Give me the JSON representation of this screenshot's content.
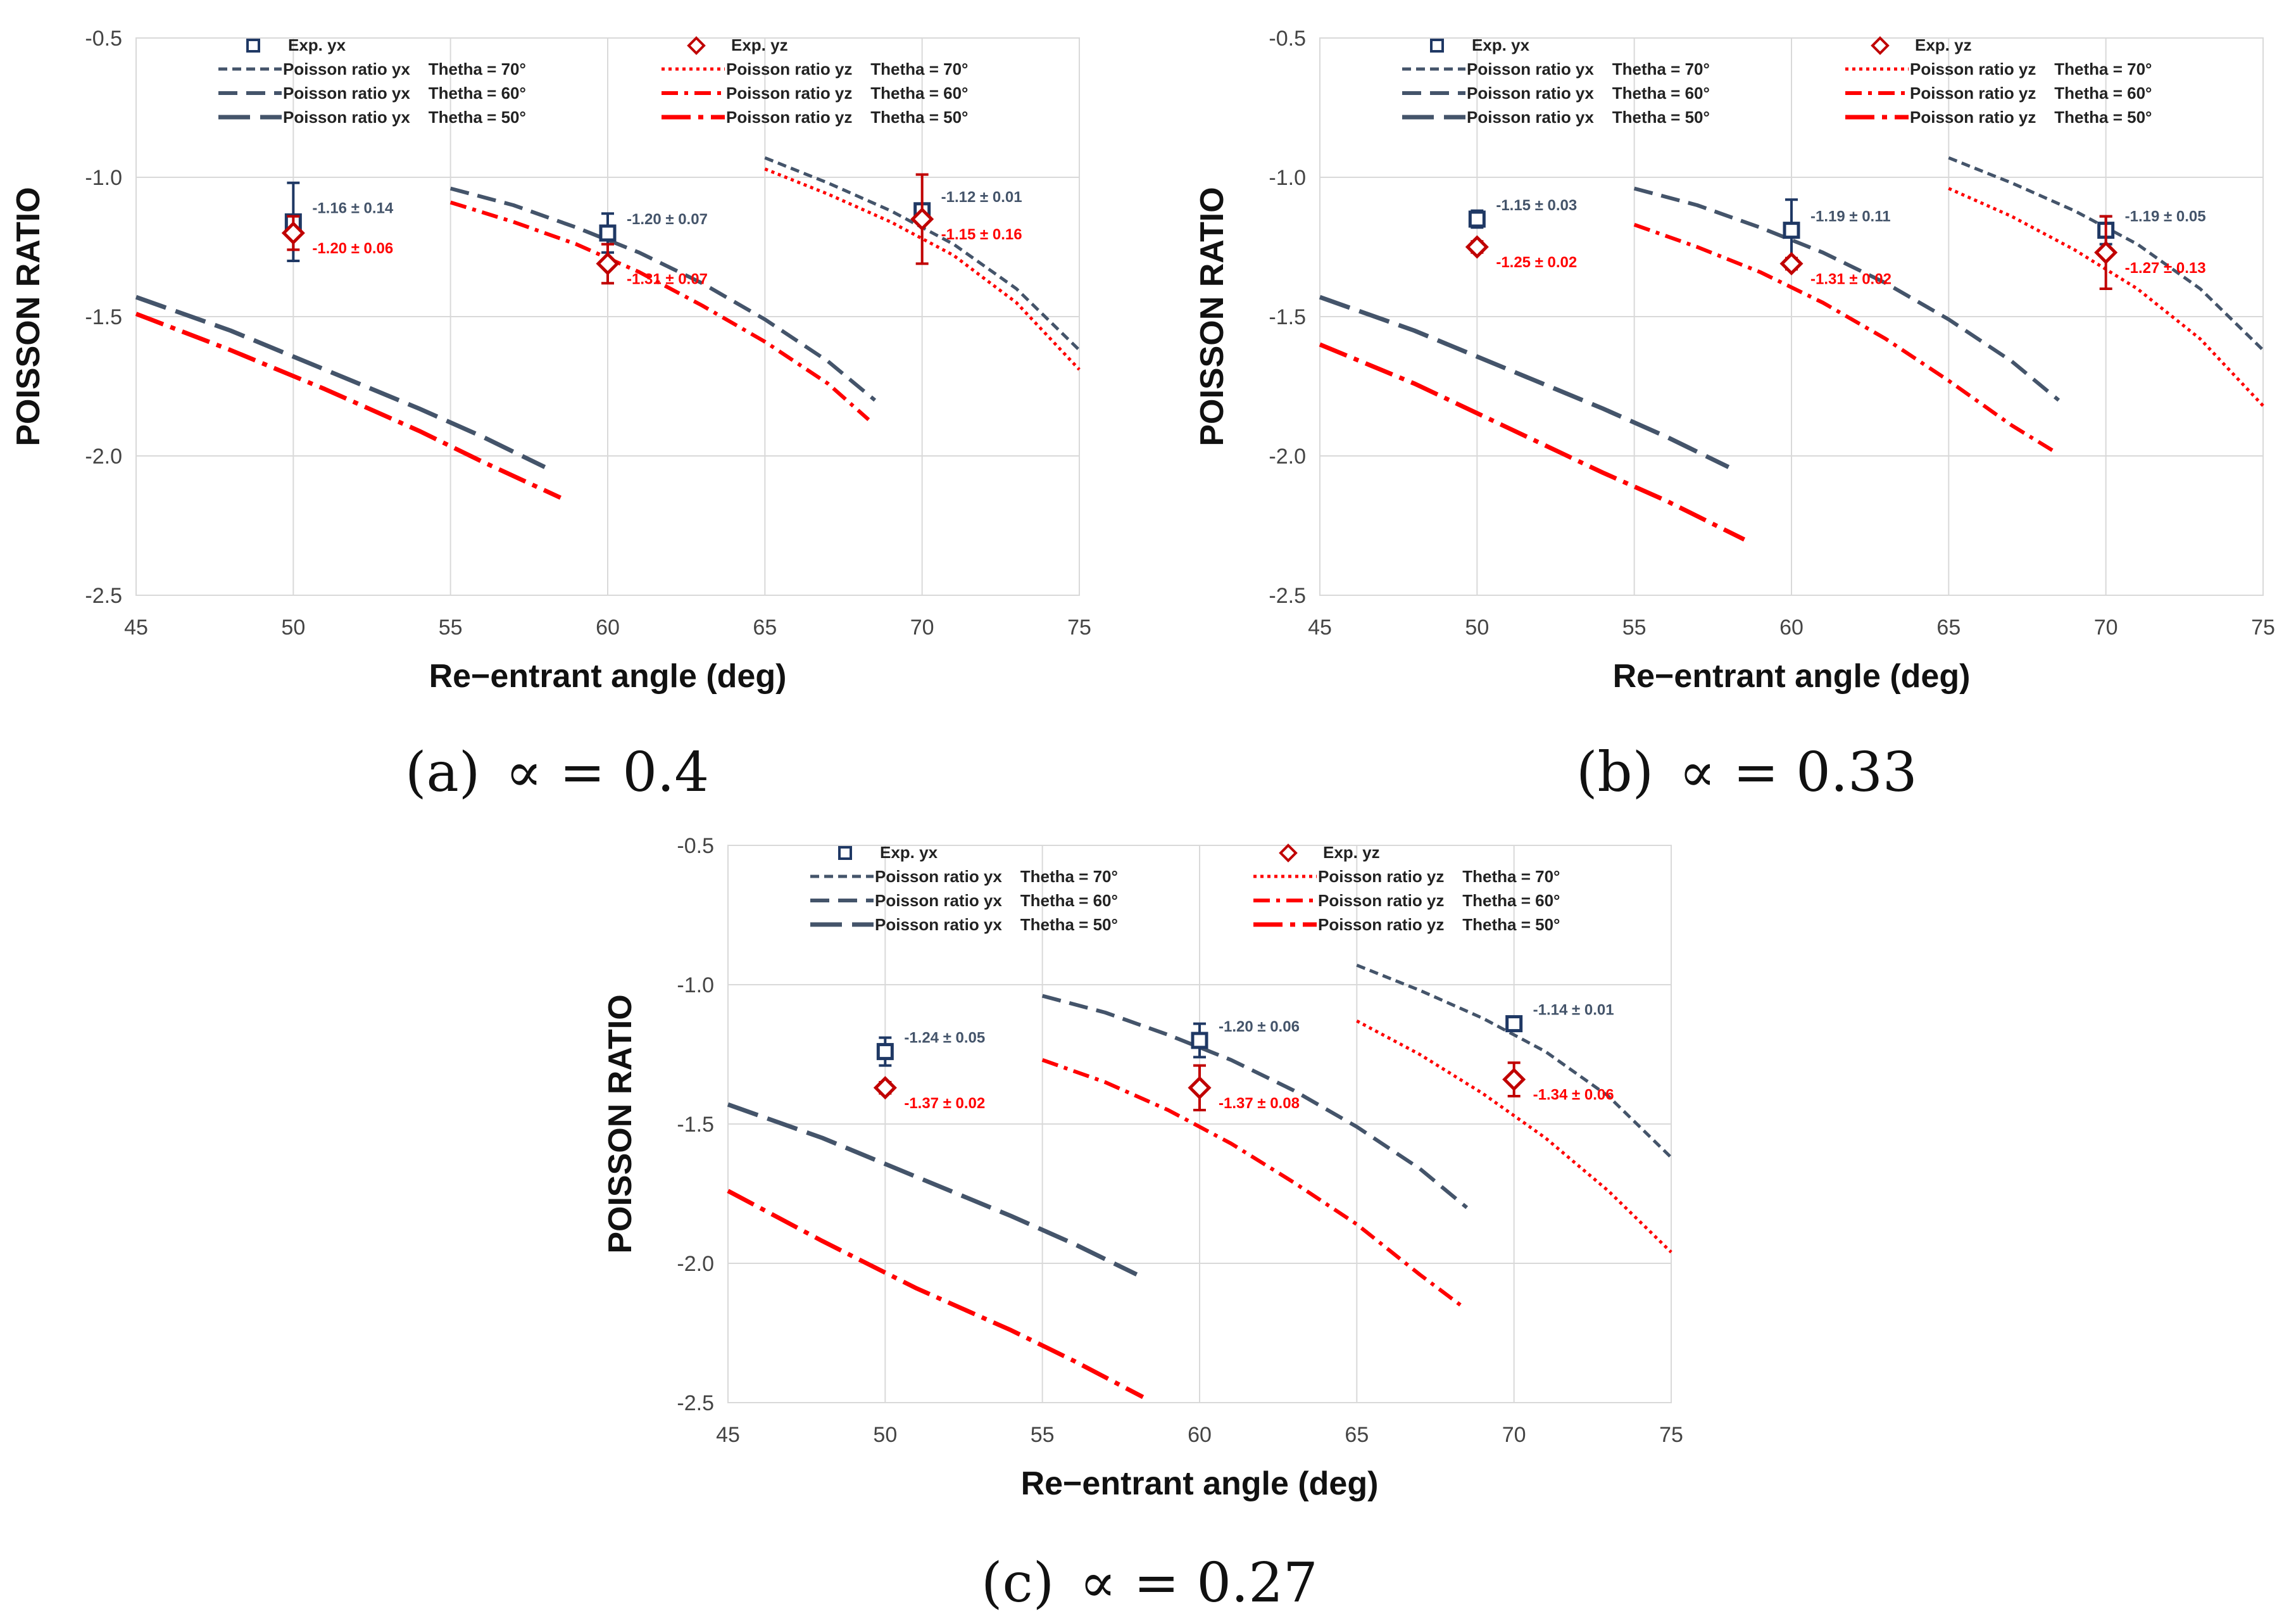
{
  "captions": [
    {
      "label": "(a)",
      "text": "∝ = 0.4"
    },
    {
      "label": "(b)",
      "text": "∝ = 0.33"
    },
    {
      "label": "(c)",
      "text": "∝ = 0.27"
    }
  ],
  "colors": {
    "yx": "#44546A",
    "yz": "#FF0000",
    "exp_yx": "#1F3864",
    "exp_yz": "#C00000",
    "grid": "#D9D9D9"
  },
  "chart_data": [
    {
      "type": "line",
      "id": "a",
      "title": "(a) ∝ = 0.4",
      "xlabel": "Re−entrant angle (deg)",
      "ylabel": "POISSON RATIO",
      "xlim": [
        45,
        75
      ],
      "ylim": [
        -2.5,
        -0.5
      ],
      "xticks": [
        "45",
        "50",
        "55",
        "60",
        "65",
        "70",
        "75"
      ],
      "yticks": [
        "-0.5",
        "-1.0",
        "-1.5",
        "-2.0",
        "-2.5"
      ],
      "grid": true,
      "legend": {
        "yx": [
          "Exp. yx",
          "Poisson ratio yx    Thetha = 70°",
          "Poisson ratio yx    Thetha = 60°",
          "Poisson ratio yx    Thetha = 50°"
        ],
        "yz": [
          "Exp. yz",
          "Poisson ratio yz    Thetha = 70°",
          "Poisson ratio yz    Thetha = 60°",
          "Poisson ratio yz    Thetha = 50°"
        ]
      },
      "series": [
        {
          "name": "Poisson ratio yx Thetha = 70°",
          "group": "yx",
          "style": "dash-short",
          "x": [
            65,
            67,
            69,
            71,
            73,
            75
          ],
          "y": [
            -0.93,
            -1.02,
            -1.12,
            -1.24,
            -1.4,
            -1.62
          ]
        },
        {
          "name": "Poisson ratio yx Thetha = 60°",
          "group": "yx",
          "style": "dash-med",
          "x": [
            55,
            57,
            59,
            61,
            63,
            65,
            67,
            68.5
          ],
          "y": [
            -1.04,
            -1.1,
            -1.18,
            -1.27,
            -1.38,
            -1.51,
            -1.66,
            -1.8
          ]
        },
        {
          "name": "Poisson ratio yx Thetha = 50°",
          "group": "yx",
          "style": "dash-long",
          "x": [
            45,
            48,
            51,
            54,
            56,
            58
          ],
          "y": [
            -1.43,
            -1.55,
            -1.69,
            -1.83,
            -1.93,
            -2.04
          ]
        },
        {
          "name": "Poisson ratio yz Thetha = 70°",
          "group": "yz",
          "style": "dot",
          "x": [
            65,
            67,
            69,
            71,
            73,
            75
          ],
          "y": [
            -0.97,
            -1.06,
            -1.16,
            -1.28,
            -1.45,
            -1.69
          ]
        },
        {
          "name": "Poisson ratio yz Thetha = 60°",
          "group": "yz",
          "style": "dash-dot",
          "x": [
            55,
            57,
            59,
            61,
            63,
            65,
            67,
            68.3
          ],
          "y": [
            -1.09,
            -1.16,
            -1.24,
            -1.34,
            -1.46,
            -1.59,
            -1.74,
            -1.87
          ]
        },
        {
          "name": "Poisson ratio yz Thetha = 50°",
          "group": "yz",
          "style": "long-dash-dot",
          "x": [
            45,
            48,
            51,
            54,
            56,
            58.5
          ],
          "y": [
            -1.49,
            -1.62,
            -1.76,
            -1.91,
            -2.02,
            -2.15
          ]
        }
      ],
      "exp_yx": [
        {
          "x": 50,
          "y": -1.16,
          "err": 0.14,
          "label": "-1.16 ± 0.14"
        },
        {
          "x": 60,
          "y": -1.2,
          "err": 0.07,
          "label": "-1.20 ± 0.07"
        },
        {
          "x": 70,
          "y": -1.12,
          "err": 0.01,
          "label": "-1.12 ± 0.01"
        }
      ],
      "exp_yz": [
        {
          "x": 50,
          "y": -1.2,
          "err": 0.06,
          "label": "-1.20 ± 0.06"
        },
        {
          "x": 60,
          "y": -1.31,
          "err": 0.07,
          "label": "-1.31 ± 0.07"
        },
        {
          "x": 70,
          "y": -1.15,
          "err": 0.16,
          "label": "-1.15 ± 0.16"
        }
      ]
    },
    {
      "type": "line",
      "id": "b",
      "title": "(b) ∝ = 0.33",
      "xlabel": "Re−entrant angle (deg)",
      "ylabel": "POISSON RATIO",
      "xlim": [
        45,
        75
      ],
      "ylim": [
        -2.5,
        -0.5
      ],
      "xticks": [
        "45",
        "50",
        "55",
        "60",
        "65",
        "70",
        "75"
      ],
      "yticks": [
        "-0.5",
        "-1.0",
        "-1.5",
        "-2.0",
        "-2.5"
      ],
      "grid": true,
      "legend": {
        "yx": [
          "Exp. yx",
          "Poisson ratio yx    Thetha = 70°",
          "Poisson ratio yx    Thetha = 60°",
          "Poisson ratio yx    Thetha = 50°"
        ],
        "yz": [
          "Exp. yz",
          "Poisson ratio yz    Thetha = 70°",
          "Poisson ratio yz    Thetha = 60°",
          "Poisson ratio yz    Thetha = 50°"
        ]
      },
      "series": [
        {
          "name": "Poisson ratio yx Thetha = 70°",
          "group": "yx",
          "style": "dash-short",
          "x": [
            65,
            67,
            69,
            71,
            73,
            75
          ],
          "y": [
            -0.93,
            -1.02,
            -1.12,
            -1.24,
            -1.4,
            -1.62
          ]
        },
        {
          "name": "Poisson ratio yx Thetha = 60°",
          "group": "yx",
          "style": "dash-med",
          "x": [
            55,
            57,
            59,
            61,
            63,
            65,
            67,
            68.5
          ],
          "y": [
            -1.04,
            -1.1,
            -1.18,
            -1.27,
            -1.38,
            -1.51,
            -1.66,
            -1.8
          ]
        },
        {
          "name": "Poisson ratio yx Thetha = 50°",
          "group": "yx",
          "style": "dash-long",
          "x": [
            45,
            48,
            51,
            54,
            56,
            58
          ],
          "y": [
            -1.43,
            -1.55,
            -1.69,
            -1.83,
            -1.93,
            -2.04
          ]
        },
        {
          "name": "Poisson ratio yz Thetha = 70°",
          "group": "yz",
          "style": "dot",
          "x": [
            65,
            67,
            69,
            71,
            73,
            75
          ],
          "y": [
            -1.04,
            -1.14,
            -1.26,
            -1.4,
            -1.58,
            -1.82
          ]
        },
        {
          "name": "Poisson ratio yz Thetha = 60°",
          "group": "yz",
          "style": "dash-dot",
          "x": [
            55,
            57,
            59,
            61,
            63,
            65,
            67,
            68.3
          ],
          "y": [
            -1.17,
            -1.25,
            -1.34,
            -1.45,
            -1.58,
            -1.73,
            -1.89,
            -1.98
          ]
        },
        {
          "name": "Poisson ratio yz Thetha = 50°",
          "group": "yz",
          "style": "long-dash-dot",
          "x": [
            45,
            48,
            51,
            54,
            56,
            58.5
          ],
          "y": [
            -1.6,
            -1.74,
            -1.9,
            -2.06,
            -2.16,
            -2.3
          ]
        }
      ],
      "exp_yx": [
        {
          "x": 50,
          "y": -1.15,
          "err": 0.03,
          "label": "-1.15 ± 0.03"
        },
        {
          "x": 60,
          "y": -1.19,
          "err": 0.11,
          "label": "-1.19 ± 0.11"
        },
        {
          "x": 70,
          "y": -1.19,
          "err": 0.05,
          "label": "-1.19 ± 0.05"
        }
      ],
      "exp_yz": [
        {
          "x": 50,
          "y": -1.25,
          "err": 0.02,
          "label": "-1.25 ± 0.02"
        },
        {
          "x": 60,
          "y": -1.31,
          "err": 0.02,
          "label": "-1.31 ± 0.02"
        },
        {
          "x": 70,
          "y": -1.27,
          "err": 0.13,
          "label": "-1.27 ± 0.13"
        }
      ]
    },
    {
      "type": "line",
      "id": "c",
      "title": "(c) ∝ = 0.27",
      "xlabel": "Re−entrant angle (deg)",
      "ylabel": "POISSON RATIO",
      "xlim": [
        45,
        75
      ],
      "ylim": [
        -2.5,
        -0.5
      ],
      "xticks": [
        "45",
        "50",
        "55",
        "60",
        "65",
        "70",
        "75"
      ],
      "yticks": [
        "-0.5",
        "-1.0",
        "-1.5",
        "-2.0",
        "-2.5"
      ],
      "grid": true,
      "legend": {
        "yx": [
          "Exp. yx",
          "Poisson ratio yx    Thetha = 70°",
          "Poisson ratio yx    Thetha = 60°",
          "Poisson ratio yx    Thetha = 50°"
        ],
        "yz": [
          "Exp. yz",
          "Poisson ratio yz    Thetha = 70°",
          "Poisson ratio yz    Thetha = 60°",
          "Poisson ratio yz    Thetha = 50°"
        ]
      },
      "series": [
        {
          "name": "Poisson ratio yx Thetha = 70°",
          "group": "yx",
          "style": "dash-short",
          "x": [
            65,
            67,
            69,
            71,
            73,
            75
          ],
          "y": [
            -0.93,
            -1.02,
            -1.12,
            -1.24,
            -1.4,
            -1.62
          ]
        },
        {
          "name": "Poisson ratio yx Thetha = 60°",
          "group": "yx",
          "style": "dash-med",
          "x": [
            55,
            57,
            59,
            61,
            63,
            65,
            67,
            68.5
          ],
          "y": [
            -1.04,
            -1.1,
            -1.18,
            -1.27,
            -1.38,
            -1.51,
            -1.66,
            -1.8
          ]
        },
        {
          "name": "Poisson ratio yx Thetha = 50°",
          "group": "yx",
          "style": "dash-long",
          "x": [
            45,
            48,
            51,
            54,
            56,
            58
          ],
          "y": [
            -1.43,
            -1.55,
            -1.69,
            -1.83,
            -1.93,
            -2.04
          ]
        },
        {
          "name": "Poisson ratio yz Thetha = 70°",
          "group": "yz",
          "style": "dot",
          "x": [
            65,
            67,
            69,
            71,
            73,
            75
          ],
          "y": [
            -1.13,
            -1.25,
            -1.39,
            -1.55,
            -1.74,
            -1.96
          ]
        },
        {
          "name": "Poisson ratio yz Thetha = 60°",
          "group": "yz",
          "style": "dash-dot",
          "x": [
            55,
            57,
            59,
            61,
            63,
            65,
            67,
            68.3
          ],
          "y": [
            -1.27,
            -1.35,
            -1.45,
            -1.57,
            -1.71,
            -1.86,
            -2.04,
            -2.15
          ]
        },
        {
          "name": "Poisson ratio yz Thetha = 50°",
          "group": "yz",
          "style": "long-dash-dot",
          "x": [
            45,
            48,
            51,
            54,
            56,
            58.2
          ],
          "y": [
            -1.74,
            -1.92,
            -2.09,
            -2.24,
            -2.35,
            -2.48
          ]
        }
      ],
      "exp_yx": [
        {
          "x": 50,
          "y": -1.24,
          "err": 0.05,
          "label": "-1.24 ± 0.05"
        },
        {
          "x": 60,
          "y": -1.2,
          "err": 0.06,
          "label": "-1.20 ± 0.06"
        },
        {
          "x": 70,
          "y": -1.14,
          "err": 0.01,
          "label": "-1.14 ± 0.01"
        }
      ],
      "exp_yz": [
        {
          "x": 50,
          "y": -1.37,
          "err": 0.02,
          "label": "-1.37 ± 0.02"
        },
        {
          "x": 60,
          "y": -1.37,
          "err": 0.08,
          "label": "-1.37 ± 0.08"
        },
        {
          "x": 70,
          "y": -1.34,
          "err": 0.06,
          "label": "-1.34 ± 0.06"
        }
      ]
    }
  ]
}
